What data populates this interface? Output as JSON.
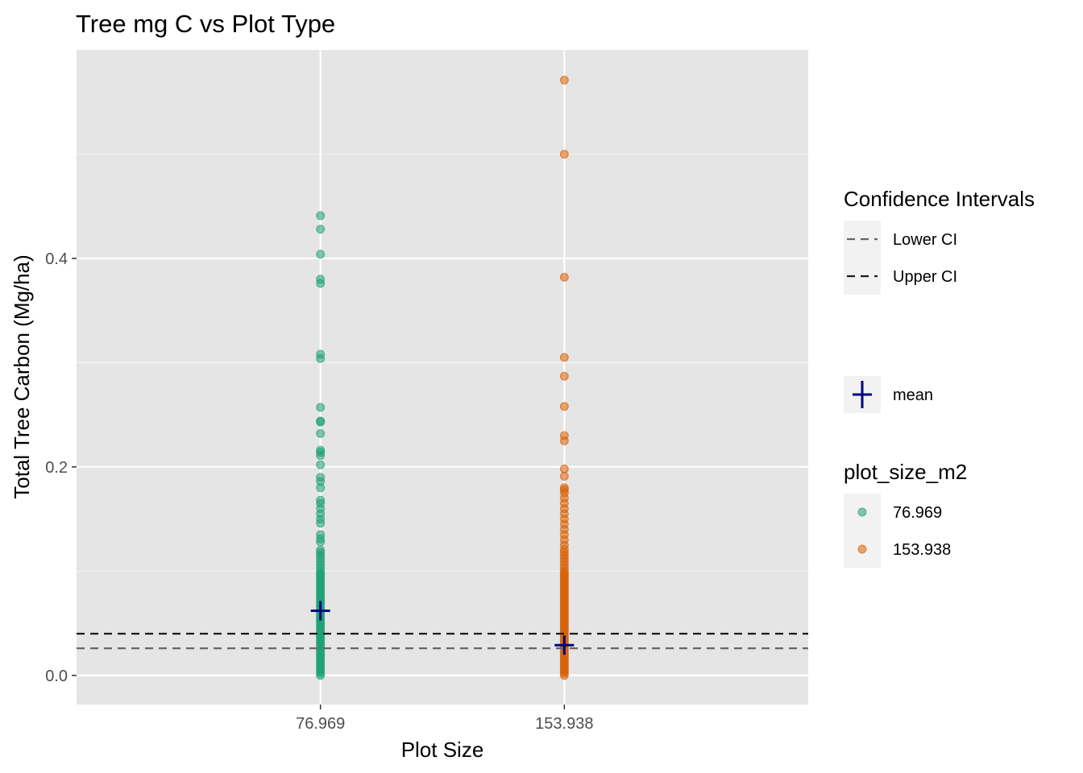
{
  "chart_data": {
    "type": "scatter",
    "title": "Tree mg C vs Plot Type",
    "xlabel": "Plot Size",
    "ylabel": "Total Tree Carbon (Mg/ha)",
    "categories": [
      "76.969",
      "153.938"
    ],
    "ylim": [
      -0.028,
      0.6
    ],
    "yticks": [
      0.0,
      0.2,
      0.4
    ],
    "ytick_labels": [
      "0.0",
      "0.2",
      "0.4"
    ],
    "grid": true,
    "legend_position": "right",
    "series": [
      {
        "name": "76.969",
        "color": "#1B9E77",
        "category": "76.969",
        "values": [
          0.0,
          0.002,
          0.004,
          0.006,
          0.008,
          0.01,
          0.012,
          0.014,
          0.016,
          0.018,
          0.02,
          0.022,
          0.024,
          0.026,
          0.028,
          0.03,
          0.032,
          0.034,
          0.036,
          0.038,
          0.04,
          0.042,
          0.044,
          0.046,
          0.048,
          0.05,
          0.052,
          0.054,
          0.056,
          0.058,
          0.06,
          0.062,
          0.064,
          0.066,
          0.068,
          0.07,
          0.072,
          0.074,
          0.076,
          0.078,
          0.08,
          0.082,
          0.084,
          0.086,
          0.088,
          0.09,
          0.092,
          0.094,
          0.096,
          0.098,
          0.1,
          0.103,
          0.106,
          0.109,
          0.112,
          0.115,
          0.118,
          0.12,
          0.128,
          0.131,
          0.135,
          0.146,
          0.15,
          0.155,
          0.16,
          0.165,
          0.168,
          0.18,
          0.186,
          0.19,
          0.202,
          0.211,
          0.214,
          0.216,
          0.232,
          0.243,
          0.244,
          0.257,
          0.304,
          0.308,
          0.376,
          0.38,
          0.404,
          0.428,
          0.441
        ]
      },
      {
        "name": "153.938",
        "color": "#D95F02",
        "category": "153.938",
        "values": [
          0.0,
          0.002,
          0.004,
          0.006,
          0.008,
          0.01,
          0.012,
          0.014,
          0.016,
          0.018,
          0.02,
          0.022,
          0.024,
          0.026,
          0.028,
          0.03,
          0.032,
          0.034,
          0.036,
          0.038,
          0.04,
          0.042,
          0.044,
          0.046,
          0.048,
          0.05,
          0.052,
          0.054,
          0.056,
          0.058,
          0.06,
          0.062,
          0.064,
          0.066,
          0.068,
          0.07,
          0.072,
          0.074,
          0.076,
          0.078,
          0.08,
          0.082,
          0.084,
          0.086,
          0.088,
          0.09,
          0.092,
          0.094,
          0.096,
          0.098,
          0.1,
          0.103,
          0.106,
          0.109,
          0.112,
          0.115,
          0.118,
          0.121,
          0.125,
          0.13,
          0.135,
          0.14,
          0.145,
          0.15,
          0.155,
          0.16,
          0.165,
          0.17,
          0.175,
          0.178,
          0.18,
          0.191,
          0.198,
          0.225,
          0.23,
          0.258,
          0.287,
          0.305,
          0.382,
          0.5,
          0.571
        ]
      }
    ],
    "means": [
      {
        "category": "76.969",
        "value": 0.062
      },
      {
        "category": "153.938",
        "value": 0.029
      }
    ],
    "reference_lines": [
      {
        "name": "Lower CI",
        "value": 0.026,
        "color": "#666666"
      },
      {
        "name": "Upper CI",
        "value": 0.04,
        "color": "#1a1a1a"
      }
    ],
    "mean_color": "#000080",
    "legends": [
      {
        "title": "Confidence Intervals",
        "items": [
          {
            "label": "Lower CI",
            "color": "#666666"
          },
          {
            "label": "Upper CI",
            "color": "#1a1a1a"
          }
        ]
      },
      {
        "title": "",
        "items": [
          {
            "label": "mean",
            "color": "#000080"
          }
        ]
      },
      {
        "title": "plot_size_m2",
        "items": [
          {
            "label": "76.969",
            "color": "#1B9E77"
          },
          {
            "label": "153.938",
            "color": "#D95F02"
          }
        ]
      }
    ]
  }
}
